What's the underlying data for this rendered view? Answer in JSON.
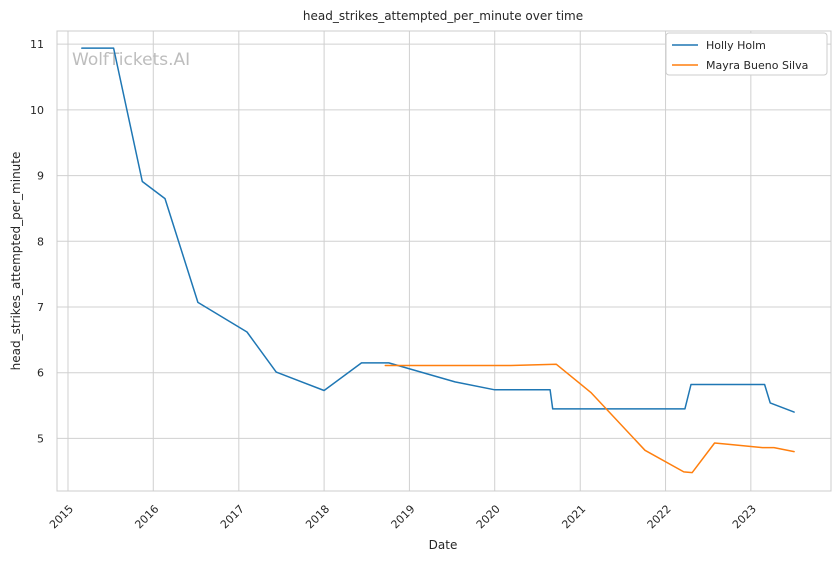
{
  "chart_data": {
    "type": "line",
    "title": "head_strikes_attempted_per_minute over time",
    "xlabel": "Date",
    "ylabel": "head_strikes_attempted_per_minute",
    "watermark": "WolfTickets.AI",
    "x_ticks": [
      "2015",
      "2016",
      "2017",
      "2018",
      "2019",
      "2020",
      "2021",
      "2022",
      "2023"
    ],
    "y_ticks": [
      "5",
      "6",
      "7",
      "8",
      "9",
      "10",
      "11"
    ],
    "xlim": [
      "2014-11-15",
      "2023-12-10"
    ],
    "ylim": [
      4.2,
      11.2
    ],
    "grid": true,
    "legend_position": "top-right",
    "series": [
      {
        "name": "Holly Holm",
        "color": "#1f77b4",
        "points": [
          [
            "2015-03-01",
            10.94
          ],
          [
            "2015-07-15",
            10.94
          ],
          [
            "2015-11-15",
            8.91
          ],
          [
            "2016-02-20",
            8.65
          ],
          [
            "2016-07-10",
            7.07
          ],
          [
            "2017-02-05",
            6.62
          ],
          [
            "2017-06-10",
            6.01
          ],
          [
            "2018-01-01",
            5.73
          ],
          [
            "2018-06-10",
            6.15
          ],
          [
            "2018-10-05",
            6.15
          ],
          [
            "2019-07-15",
            5.86
          ],
          [
            "2020-01-01",
            5.74
          ],
          [
            "2020-08-25",
            5.74
          ],
          [
            "2020-09-05",
            5.45
          ],
          [
            "2022-03-25",
            5.45
          ],
          [
            "2022-04-20",
            5.82
          ],
          [
            "2023-03-01",
            5.82
          ],
          [
            "2023-03-25",
            5.54
          ],
          [
            "2023-07-05",
            5.4
          ]
        ]
      },
      {
        "name": "Mayra Bueno Silva",
        "color": "#ff7f0e",
        "points": [
          [
            "2018-09-20",
            6.11
          ],
          [
            "2020-03-10",
            6.11
          ],
          [
            "2020-09-20",
            6.13
          ],
          [
            "2021-02-15",
            5.7
          ],
          [
            "2021-10-05",
            4.82
          ],
          [
            "2022-03-20",
            4.49
          ],
          [
            "2022-04-25",
            4.48
          ],
          [
            "2022-07-30",
            4.93
          ],
          [
            "2022-09-25",
            4.91
          ],
          [
            "2023-02-20",
            4.86
          ],
          [
            "2023-04-10",
            4.86
          ],
          [
            "2023-07-05",
            4.8
          ]
        ]
      }
    ]
  }
}
